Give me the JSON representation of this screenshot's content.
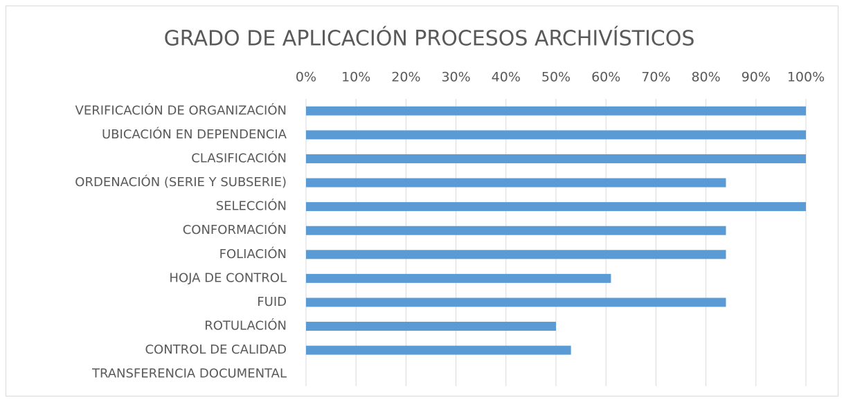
{
  "chart_data": {
    "type": "bar",
    "orientation": "horizontal",
    "title": "GRADO DE APLICACIÓN PROCESOS ARCHIVÍSTICOS",
    "categories": [
      "VERIFICACIÓN DE ORGANIZACIÓN",
      "UBICACIÓN EN DEPENDENCIA",
      "CLASIFICACIÓN",
      "ORDENACIÓN (SERIE Y SUBSERIE)",
      "SELECCIÓN",
      "CONFORMACIÓN",
      "FOLIACIÓN",
      "HOJA DE CONTROL",
      "FUID",
      "ROTULACIÓN",
      "CONTROL DE CALIDAD",
      "TRANSFERENCIA DOCUMENTAL"
    ],
    "values": [
      100,
      100,
      100,
      84,
      100,
      84,
      84,
      61,
      84,
      50,
      53,
      0
    ],
    "color": "#5b9bd5",
    "xlim": [
      0,
      100
    ],
    "xticks": [
      {
        "value": 0,
        "label": "0%"
      },
      {
        "value": 10,
        "label": "10%"
      },
      {
        "value": 20,
        "label": "20%"
      },
      {
        "value": 30,
        "label": "30%"
      },
      {
        "value": 40,
        "label": "40%"
      },
      {
        "value": 50,
        "label": "50%"
      },
      {
        "value": 60,
        "label": "60%"
      },
      {
        "value": 70,
        "label": "70%"
      },
      {
        "value": 80,
        "label": "80%"
      },
      {
        "value": 90,
        "label": "90%"
      },
      {
        "value": 100,
        "label": "100%"
      }
    ],
    "grid": true
  }
}
